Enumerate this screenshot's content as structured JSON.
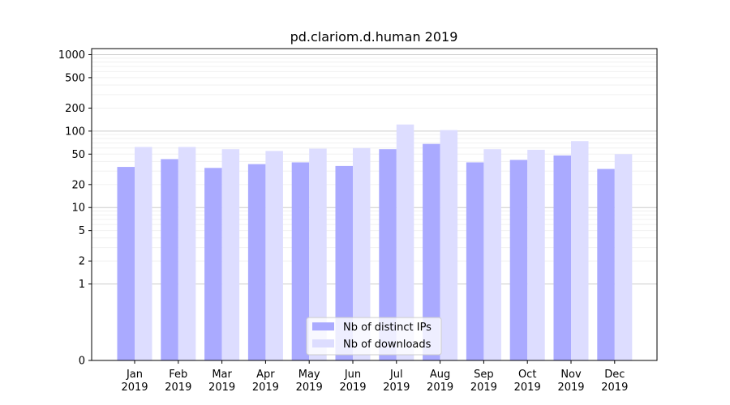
{
  "chart_data": {
    "type": "bar",
    "title": "pd.clariom.d.human 2019",
    "xlabel": "",
    "ylabel": "",
    "y_scale": "symlog",
    "ylim": [
      0,
      1200
    ],
    "y_ticks": [
      0,
      1,
      2,
      5,
      10,
      20,
      50,
      100,
      200,
      500,
      1000
    ],
    "categories": [
      "Jan\n2019",
      "Feb\n2019",
      "Mar\n2019",
      "Apr\n2019",
      "May\n2019",
      "Jun\n2019",
      "Jul\n2019",
      "Aug\n2019",
      "Sep\n2019",
      "Oct\n2019",
      "Nov\n2019",
      "Dec\n2019"
    ],
    "series": [
      {
        "name": "Nb of distinct IPs",
        "color": "#aaaaff",
        "values": [
          34,
          43,
          33,
          37,
          39,
          35,
          58,
          68,
          39,
          42,
          48,
          32
        ]
      },
      {
        "name": "Nb of downloads",
        "color": "#ddddff",
        "values": [
          62,
          62,
          58,
          55,
          59,
          60,
          122,
          103,
          58,
          57,
          74,
          50
        ]
      }
    ],
    "grid": true,
    "legend_position": "lower-center"
  }
}
